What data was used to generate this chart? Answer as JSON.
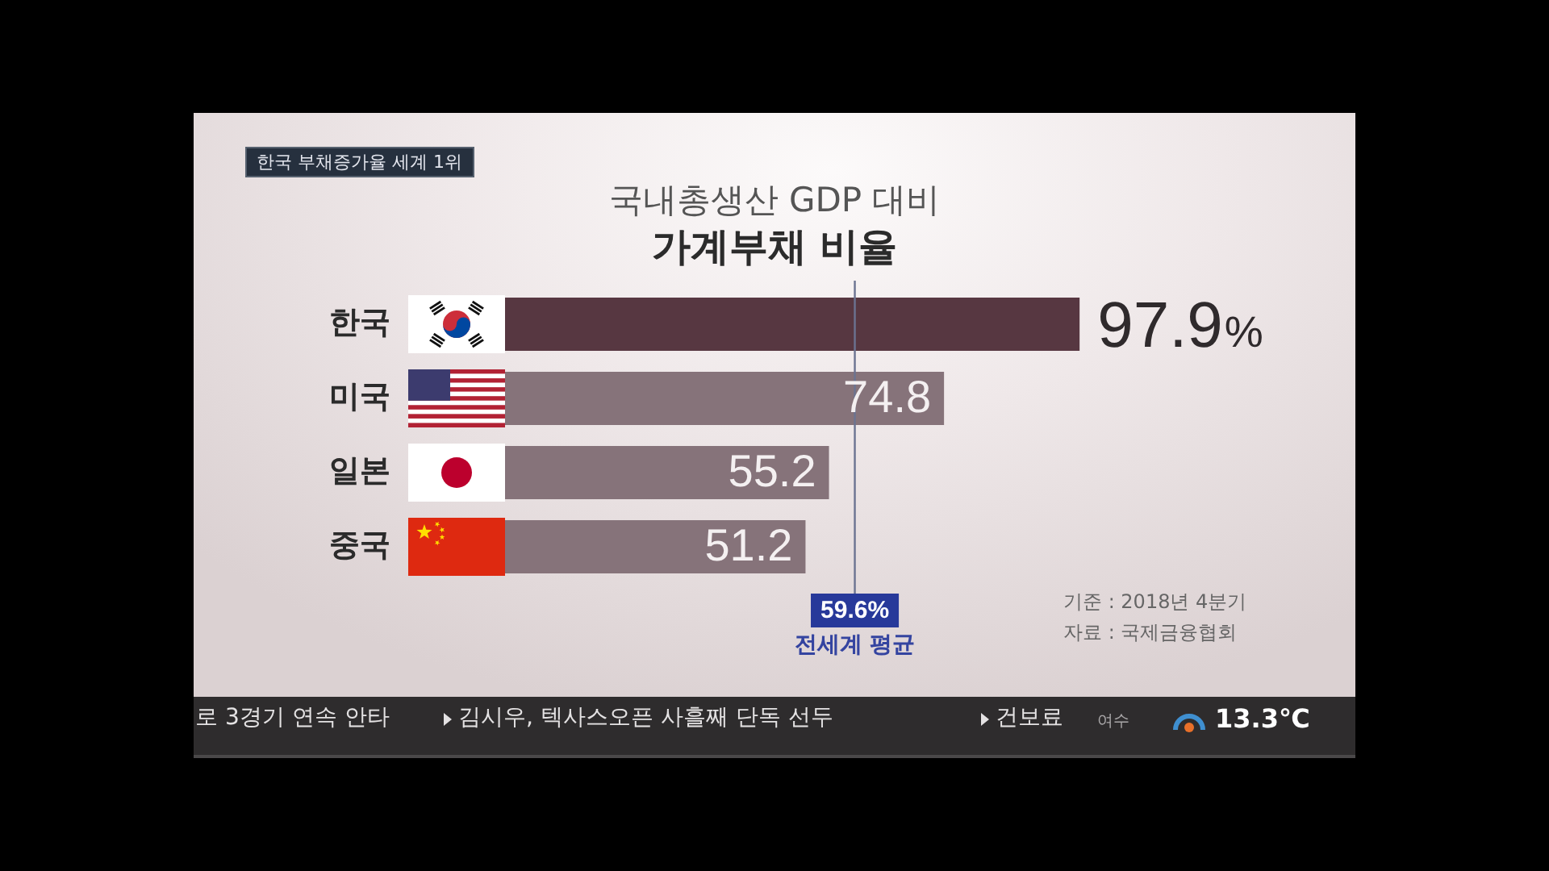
{
  "chart_data": {
    "type": "bar",
    "orientation": "horizontal",
    "title": "가계부채 비율",
    "subtitle": "국내총생산 GDP 대비",
    "categories": [
      "한국",
      "미국",
      "일본",
      "중국"
    ],
    "values": [
      97.9,
      74.8,
      55.2,
      51.2
    ],
    "colors": [
      "#573741",
      "#86737a",
      "#86737a",
      "#86737a"
    ],
    "value_labels": [
      "97.9%",
      "74.8",
      "55.2",
      "51.2"
    ],
    "ref_lines": [
      {
        "axis": "x",
        "value": 59.6,
        "label": "59.6%",
        "color": "#6b7391"
      }
    ],
    "annotations": [
      "한국 부채증가율 세계 1위",
      "전세계 평균",
      "기준 : 2018년 4분기",
      "자료 : 국제금융협회",
      "로 3경기 연속 안타",
      "김시우, 텍사스오픈 사흘째 단독 선두",
      "건보료",
      "여수",
      "13.3℃"
    ],
    "tick_labels": "y"
  }
}
